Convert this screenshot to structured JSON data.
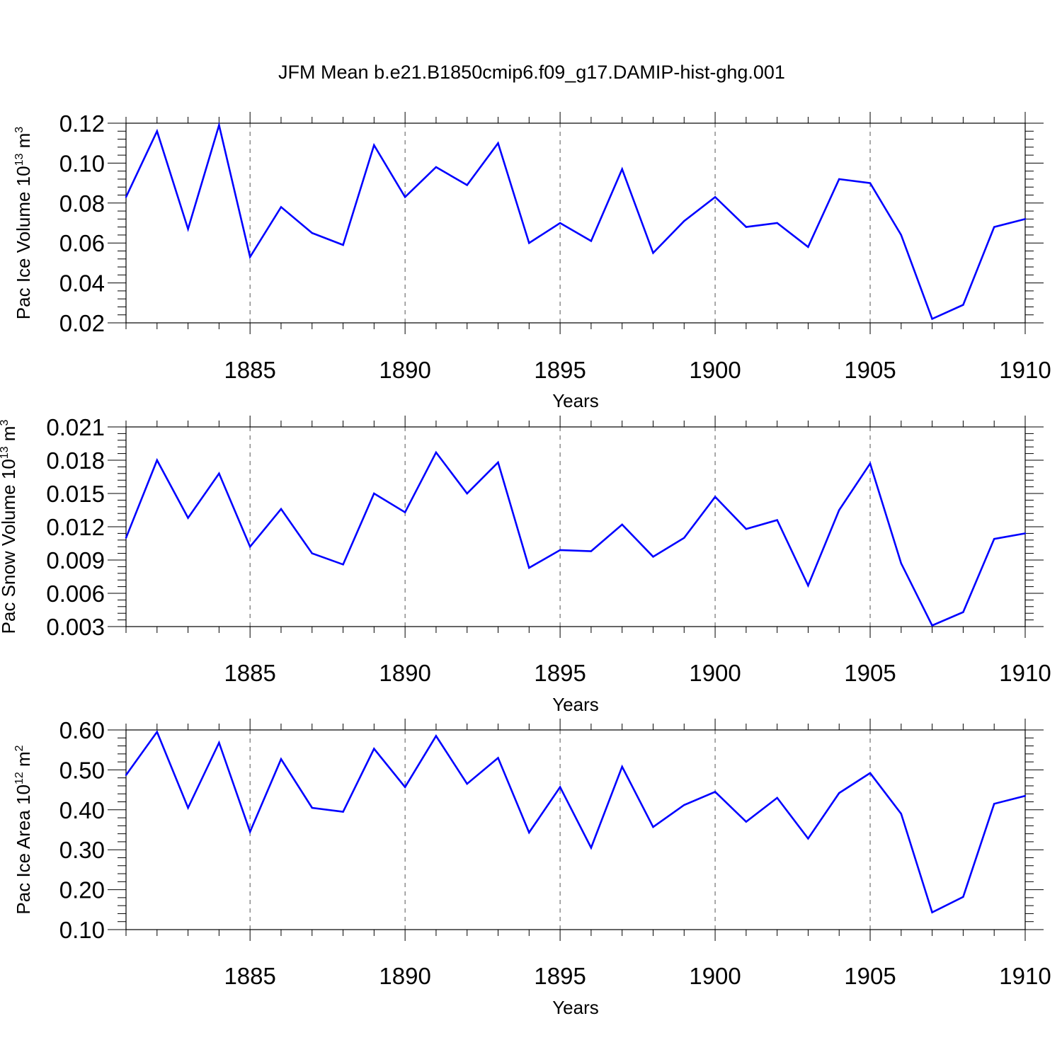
{
  "title": "JFM Mean b.e21.B1850cmip6.f09_g17.DAMIP-hist-ghg.001",
  "line_color": "#0000ff",
  "chart_data": [
    {
      "type": "line",
      "ylabel": "Pac Ice Volume 10",
      "ylabel_exp": "13",
      "ylabel_unit": " m",
      "ylabel_unit_exp": "3",
      "xlabel": "Years",
      "xlim": [
        1881,
        1910
      ],
      "ylim": [
        0.02,
        0.12
      ],
      "xticks": [
        1885,
        1890,
        1895,
        1900,
        1905,
        1910
      ],
      "xtick_labels": [
        "1885",
        "1890",
        "1895",
        "1900",
        "1905",
        "1910"
      ],
      "yticks": [
        0.02,
        0.04,
        0.06,
        0.08,
        0.1,
        0.12
      ],
      "ytick_labels": [
        "0.02",
        "0.04",
        "0.06",
        "0.08",
        "0.10",
        "0.12"
      ],
      "x": [
        1881,
        1882,
        1883,
        1884,
        1885,
        1886,
        1887,
        1888,
        1889,
        1890,
        1891,
        1892,
        1893,
        1894,
        1895,
        1896,
        1897,
        1898,
        1899,
        1900,
        1901,
        1902,
        1903,
        1904,
        1905,
        1906,
        1907,
        1908,
        1909,
        1910
      ],
      "values": [
        0.083,
        0.116,
        0.067,
        0.119,
        0.053,
        0.078,
        0.065,
        0.059,
        0.109,
        0.083,
        0.098,
        0.089,
        0.11,
        0.06,
        0.07,
        0.061,
        0.097,
        0.055,
        0.071,
        0.083,
        0.068,
        0.07,
        0.058,
        0.092,
        0.09,
        0.064,
        0.022,
        0.029,
        0.068,
        0.072
      ]
    },
    {
      "type": "line",
      "ylabel": "Pac Snow Volume 10",
      "ylabel_exp": "13",
      "ylabel_unit": " m",
      "ylabel_unit_exp": "3",
      "xlabel": "Years",
      "xlim": [
        1881,
        1910
      ],
      "ylim": [
        0.003,
        0.021
      ],
      "xticks": [
        1885,
        1890,
        1895,
        1900,
        1905,
        1910
      ],
      "xtick_labels": [
        "1885",
        "1890",
        "1895",
        "1900",
        "1905",
        "1910"
      ],
      "yticks": [
        0.003,
        0.006,
        0.009,
        0.012,
        0.015,
        0.018,
        0.021
      ],
      "ytick_labels": [
        "0.003",
        "0.006",
        "0.009",
        "0.012",
        "0.015",
        "0.018",
        "0.021"
      ],
      "x": [
        1881,
        1882,
        1883,
        1884,
        1885,
        1886,
        1887,
        1888,
        1889,
        1890,
        1891,
        1892,
        1893,
        1894,
        1895,
        1896,
        1897,
        1898,
        1899,
        1900,
        1901,
        1902,
        1903,
        1904,
        1905,
        1906,
        1907,
        1908,
        1909,
        1910
      ],
      "values": [
        0.011,
        0.018,
        0.0128,
        0.0168,
        0.0102,
        0.0136,
        0.0096,
        0.0086,
        0.015,
        0.0133,
        0.0187,
        0.015,
        0.0178,
        0.0083,
        0.0099,
        0.0098,
        0.0122,
        0.0093,
        0.011,
        0.0147,
        0.0118,
        0.0126,
        0.0067,
        0.0135,
        0.0177,
        0.0087,
        0.0031,
        0.0043,
        0.0109,
        0.0114
      ]
    },
    {
      "type": "line",
      "ylabel": "Pac Ice Area 10",
      "ylabel_exp": "12",
      "ylabel_unit": " m",
      "ylabel_unit_exp": "2",
      "xlabel": "Years",
      "xlim": [
        1881,
        1910
      ],
      "ylim": [
        0.1,
        0.6
      ],
      "xticks": [
        1885,
        1890,
        1895,
        1900,
        1905,
        1910
      ],
      "xtick_labels": [
        "1885",
        "1890",
        "1895",
        "1900",
        "1905",
        "1910"
      ],
      "yticks": [
        0.1,
        0.2,
        0.3,
        0.4,
        0.5,
        0.6
      ],
      "ytick_labels": [
        "0.10",
        "0.20",
        "0.30",
        "0.40",
        "0.50",
        "0.60"
      ],
      "x": [
        1881,
        1882,
        1883,
        1884,
        1885,
        1886,
        1887,
        1888,
        1889,
        1890,
        1891,
        1892,
        1893,
        1894,
        1895,
        1896,
        1897,
        1898,
        1899,
        1900,
        1901,
        1902,
        1903,
        1904,
        1905,
        1906,
        1907,
        1908,
        1909,
        1910
      ],
      "values": [
        0.487,
        0.595,
        0.405,
        0.568,
        0.345,
        0.527,
        0.405,
        0.395,
        0.553,
        0.457,
        0.585,
        0.465,
        0.53,
        0.343,
        0.457,
        0.305,
        0.508,
        0.357,
        0.412,
        0.445,
        0.37,
        0.43,
        0.328,
        0.442,
        0.492,
        0.39,
        0.143,
        0.182,
        0.415,
        0.435
      ]
    }
  ]
}
